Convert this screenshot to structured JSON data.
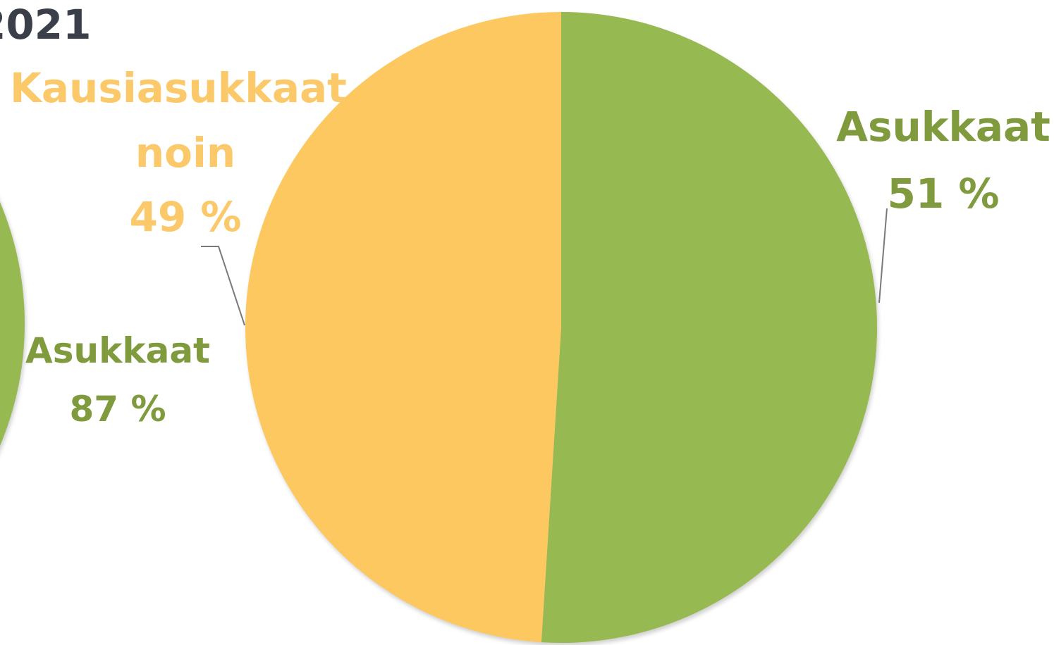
{
  "title_fragment": "2021",
  "colors": {
    "resident": "#96b951",
    "resident_label": "#7f9b3e",
    "seasonal": "#fdc860",
    "seasonal_label": "#fcc96a",
    "leader": "#7a7a7a",
    "title": "#3a3f4a"
  },
  "chart_data": [
    {
      "type": "pie",
      "title": "",
      "slices": [
        {
          "label": "Asukkaat",
          "value": 87,
          "value_text": "87 %",
          "color": "#96b951"
        }
      ]
    },
    {
      "type": "pie",
      "title": "",
      "slices": [
        {
          "label": "Asukkaat",
          "value": 51,
          "value_text": "51 %",
          "color": "#96b951"
        },
        {
          "label": "Kausiasukkaat noin",
          "value": 49,
          "value_text": "49 %",
          "color": "#fdc860"
        }
      ]
    }
  ]
}
